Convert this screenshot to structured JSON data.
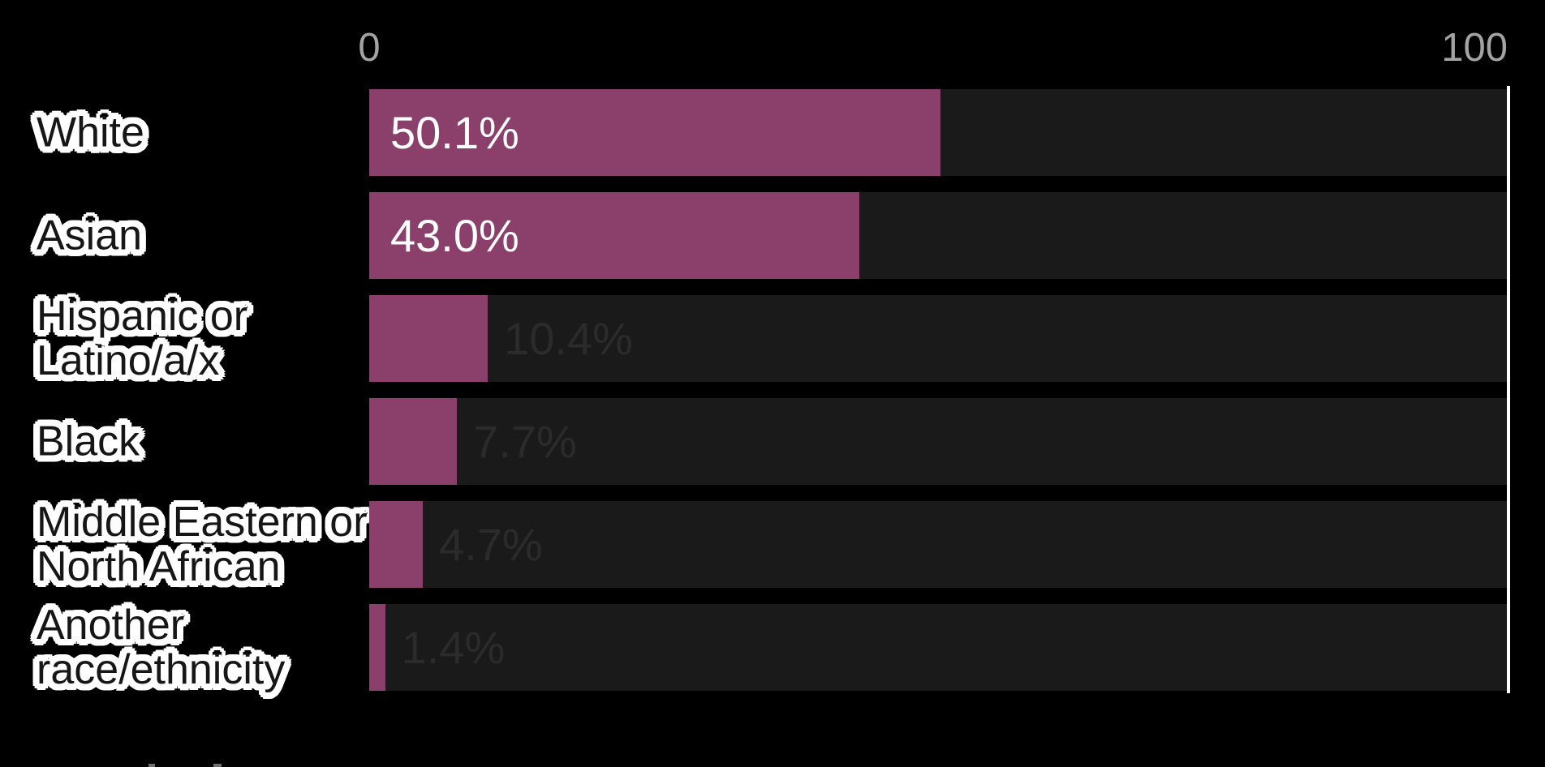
{
  "chart_data": {
    "type": "bar",
    "orientation": "horizontal",
    "categories": [
      "White",
      "Asian",
      "Hispanic or Latino/a/x",
      "Black",
      "Middle Eastern or North African",
      "Another race/ethnicity"
    ],
    "category_lines": [
      [
        "White"
      ],
      [
        "Asian"
      ],
      [
        "Hispanic or",
        "Latino/a/x"
      ],
      [
        "Black"
      ],
      [
        "Middle Eastern or",
        "North African"
      ],
      [
        "Another",
        "race/ethnicity"
      ]
    ],
    "values": [
      50.1,
      43.0,
      10.4,
      7.7,
      4.7,
      1.4
    ],
    "value_labels": [
      "50.1%",
      "43.0%",
      "10.4%",
      "7.7%",
      "4.7%",
      "1.4%"
    ],
    "value_label_inside": [
      true,
      true,
      false,
      false,
      false,
      false
    ],
    "x_axis": {
      "min": 0,
      "max": 100,
      "ticks": [
        "0",
        "100"
      ]
    },
    "layout_hints": {
      "grid": "off",
      "legend": "none",
      "axis_position": "top",
      "full_scale_tracks": true,
      "end_line_at_max": true
    },
    "colors": {
      "background": "#000000",
      "bar": "#8b406b",
      "track": "#1a1a1a",
      "value_inside": "#ffffff",
      "value_outside": "#2b2b2b",
      "axis_label": "#a3a3a3",
      "category_text": "#161616",
      "category_halo": "#ffffff",
      "axis_line": "#ffffff"
    }
  }
}
